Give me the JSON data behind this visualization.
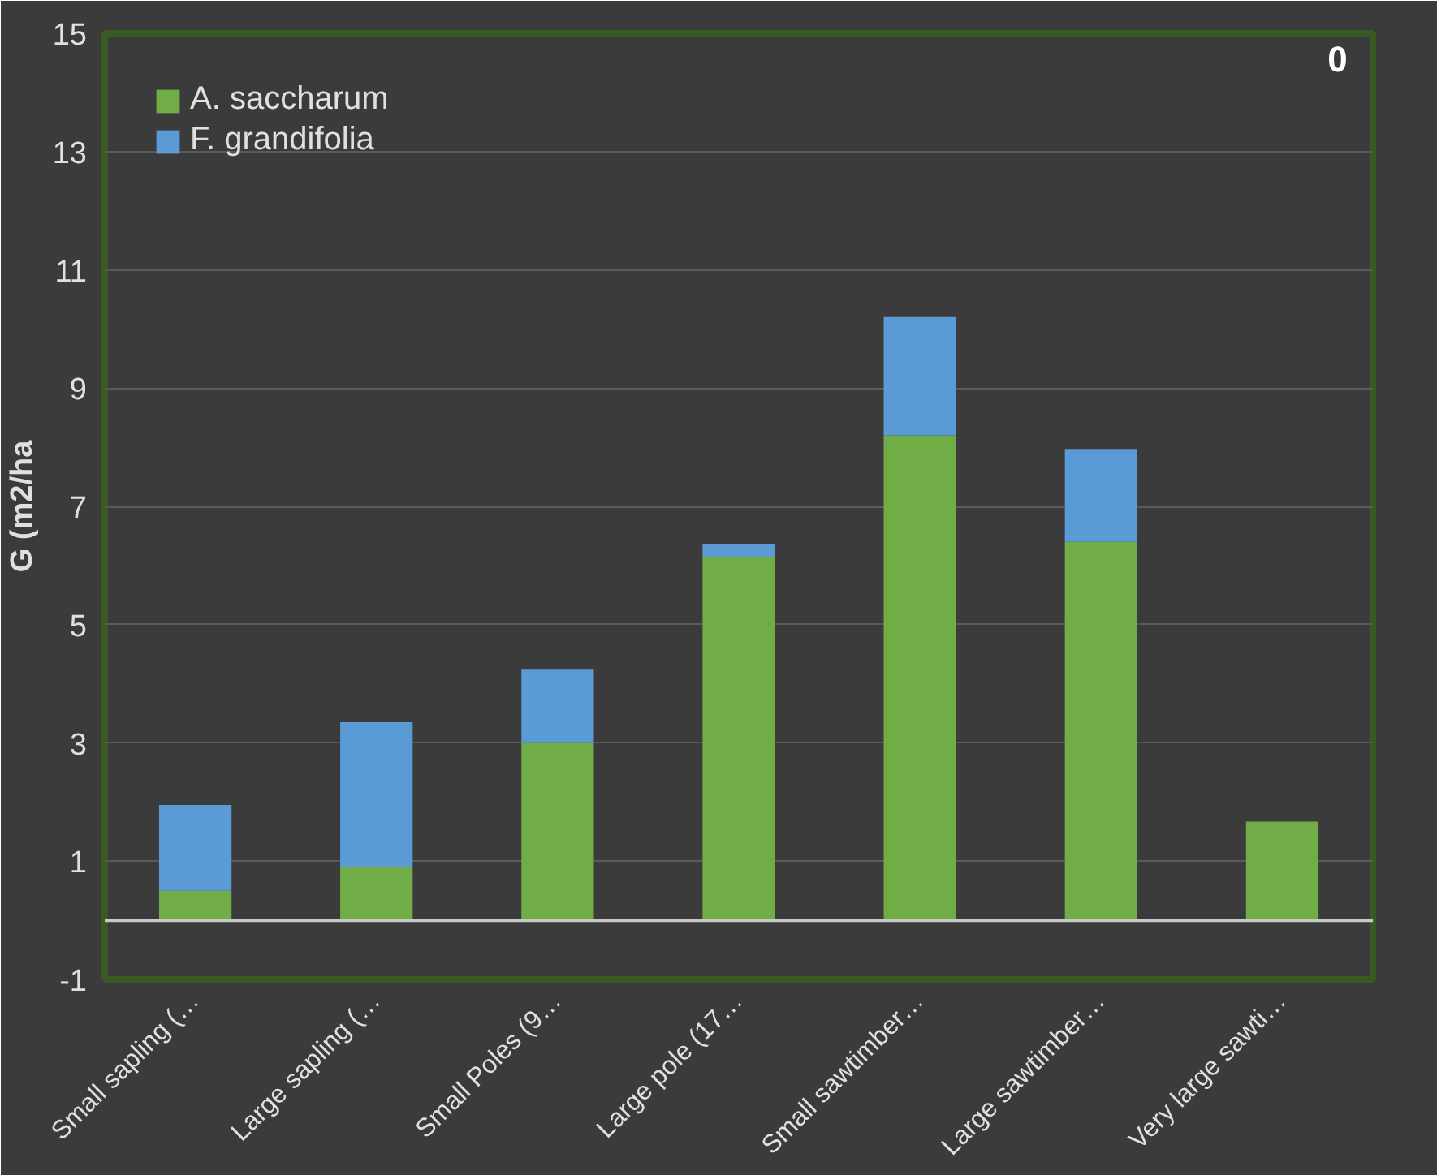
{
  "chart_data": {
    "type": "bar",
    "stacked": true,
    "ylabel": "G (m2/ha",
    "annotations": [
      "0"
    ],
    "categories": [
      "Small sapling (…",
      "Large sapling (…",
      "Small Poles (9…",
      "Large pole (17…",
      "Small sawtimber…",
      "Large sawtimber…",
      "Very large sawti…"
    ],
    "series": [
      {
        "name": "A. saccharum",
        "color": "#70ad47",
        "values": [
          0.5,
          0.9,
          3.0,
          6.15,
          8.2,
          6.4,
          1.67
        ]
      },
      {
        "name": "F. grandifolia",
        "color": "#5b9bd5",
        "values": [
          1.45,
          2.45,
          1.24,
          0.22,
          2.0,
          1.57,
          0
        ]
      }
    ],
    "ylim": [
      -1,
      15
    ],
    "yticks": [
      -1,
      1,
      3,
      5,
      7,
      9,
      11,
      13,
      15
    ],
    "grid": "y",
    "legend": "top left"
  }
}
